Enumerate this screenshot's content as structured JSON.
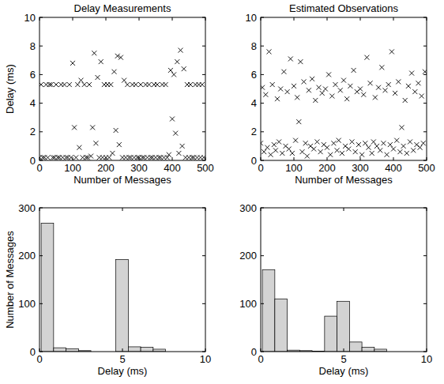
{
  "chart_data": [
    {
      "type": "scatter",
      "title": "Delay Measurements",
      "x_label": "Number of Messages",
      "y_label": "Delay (ms)",
      "marker": "x",
      "color": "#000000",
      "xlim": [
        0,
        500
      ],
      "xticks": [
        0,
        100,
        200,
        300,
        400,
        500
      ],
      "ylim": [
        0,
        10
      ],
      "yticks": [
        0,
        2,
        4,
        6,
        8,
        10
      ],
      "x": [
        0,
        5,
        10,
        15,
        20,
        25,
        30,
        35,
        40,
        45,
        50,
        55,
        60,
        65,
        70,
        75,
        80,
        85,
        90,
        95,
        100,
        105,
        110,
        115,
        120,
        125,
        130,
        135,
        140,
        145,
        150,
        155,
        160,
        165,
        170,
        175,
        180,
        185,
        190,
        195,
        200,
        205,
        210,
        215,
        220,
        225,
        230,
        235,
        240,
        245,
        250,
        255,
        260,
        265,
        270,
        275,
        280,
        285,
        290,
        295,
        300,
        305,
        310,
        315,
        320,
        325,
        330,
        335,
        340,
        345,
        350,
        355,
        360,
        365,
        370,
        375,
        380,
        385,
        390,
        395,
        400,
        405,
        410,
        415,
        420,
        425,
        430,
        435,
        440,
        445,
        450,
        455,
        460,
        465,
        470,
        475,
        480,
        485,
        490,
        495
      ],
      "y": [
        0.2,
        5.3,
        0.2,
        0.2,
        5.3,
        0.2,
        5.3,
        5.3,
        0.2,
        0.2,
        5.3,
        0.2,
        0.2,
        5.3,
        0.2,
        5.3,
        0.2,
        0.2,
        5.3,
        0.2,
        6.8,
        2.3,
        0.2,
        5.3,
        0.9,
        5.6,
        0.2,
        5.3,
        0.2,
        0.2,
        5.3,
        0.3,
        2.3,
        7.5,
        1.2,
        5.8,
        0.2,
        6.9,
        0.2,
        5.3,
        0.2,
        5.3,
        0.2,
        5.3,
        0.5,
        6.2,
        2.1,
        7.3,
        1.1,
        7.2,
        0.2,
        5.6,
        0.2,
        5.3,
        0.2,
        0.2,
        5.3,
        0.2,
        5.3,
        0.2,
        0.2,
        5.3,
        0.2,
        0.2,
        5.3,
        0.2,
        5.3,
        0.2,
        0.2,
        5.3,
        0.2,
        5.3,
        0.2,
        0.2,
        5.3,
        0.2,
        5.3,
        0.2,
        0.4,
        6.3,
        2.9,
        6.0,
        1.9,
        6.9,
        0.5,
        7.7,
        1.0,
        6.4,
        0.2,
        5.3,
        0.2,
        5.3,
        0.2,
        0.2,
        5.3,
        0.2,
        5.3,
        0.2,
        5.3,
        0.2
      ]
    },
    {
      "type": "scatter",
      "title": "Estimated Observations",
      "x_label": "Number of Messages",
      "marker": "x",
      "color": "#000000",
      "xlim": [
        0,
        500
      ],
      "xticks": [
        0,
        100,
        200,
        300,
        400,
        500
      ],
      "ylim": [
        0,
        10
      ],
      "yticks": [
        0,
        2,
        4,
        6,
        8,
        10
      ],
      "x": [
        0,
        5,
        10,
        15,
        20,
        25,
        30,
        35,
        40,
        45,
        50,
        55,
        60,
        65,
        70,
        75,
        80,
        85,
        90,
        95,
        100,
        105,
        110,
        115,
        120,
        125,
        130,
        135,
        140,
        145,
        150,
        155,
        160,
        165,
        170,
        175,
        180,
        185,
        190,
        195,
        200,
        205,
        210,
        215,
        220,
        225,
        230,
        235,
        240,
        245,
        250,
        255,
        260,
        265,
        270,
        275,
        280,
        285,
        290,
        295,
        300,
        305,
        310,
        315,
        320,
        325,
        330,
        335,
        340,
        345,
        350,
        355,
        360,
        365,
        370,
        375,
        380,
        385,
        390,
        395,
        400,
        405,
        410,
        415,
        420,
        425,
        430,
        435,
        440,
        445,
        450,
        455,
        460,
        465,
        470,
        475,
        480,
        485,
        490,
        495
      ],
      "y": [
        1.2,
        5.1,
        0.6,
        4.6,
        0.9,
        7.6,
        0.4,
        5.3,
        1.1,
        0.7,
        4.3,
        1.3,
        5.0,
        0.5,
        6.2,
        1.0,
        4.8,
        0.8,
        7.1,
        0.5,
        5.2,
        1.4,
        4.4,
        2.7,
        6.9,
        0.6,
        5.5,
        1.2,
        0.3,
        4.9,
        1.0,
        5.7,
        0.8,
        4.2,
        1.3,
        5.1,
        0.6,
        4.7,
        1.1,
        5.0,
        0.9,
        6.0,
        0.4,
        4.5,
        1.2,
        5.3,
        0.7,
        1.4,
        4.9,
        0.5,
        5.6,
        1.0,
        4.3,
        0.8,
        5.2,
        1.3,
        6.3,
        0.6,
        4.8,
        1.1,
        5.0,
        0.4,
        4.6,
        1.2,
        7.2,
        0.9,
        5.4,
        0.5,
        1.3,
        4.4,
        1.0,
        5.1,
        0.7,
        6.5,
        1.2,
        4.9,
        0.4,
        5.3,
        1.1,
        7.6,
        0.8,
        4.7,
        1.4,
        5.5,
        0.6,
        2.3,
        1.0,
        4.2,
        0.5,
        5.2,
        1.3,
        6.1,
        0.7,
        4.8,
        1.1,
        5.4,
        0.9,
        4.5,
        1.2,
        6.2
      ]
    },
    {
      "type": "histogram",
      "x_label": "Delay (ms)",
      "y_label": "Number of Messages",
      "color": "#d3d3d3",
      "bins": [
        0.1,
        0.85,
        1.6,
        2.35,
        3.1,
        3.85,
        4.6,
        5.35,
        6.1,
        6.85,
        7.6
      ],
      "values": [
        268,
        8,
        6,
        2,
        0,
        0,
        192,
        10,
        9,
        5
      ],
      "xlim": [
        0,
        10
      ],
      "xticks": [
        0,
        5,
        10
      ],
      "ylim": [
        0,
        300
      ],
      "yticks": [
        0,
        100,
        200,
        300
      ]
    },
    {
      "type": "histogram",
      "x_label": "Delay (ms)",
      "color": "#d3d3d3",
      "bins": [
        0.1,
        0.85,
        1.6,
        2.35,
        3.1,
        3.85,
        4.6,
        5.35,
        6.1,
        6.85,
        7.6
      ],
      "values": [
        171,
        110,
        3,
        2,
        1,
        74,
        105,
        20,
        9,
        5
      ],
      "xlim": [
        0,
        10
      ],
      "xticks": [
        0,
        5,
        10
      ],
      "ylim": [
        0,
        300
      ],
      "yticks": [
        0,
        100,
        200,
        300
      ]
    }
  ]
}
